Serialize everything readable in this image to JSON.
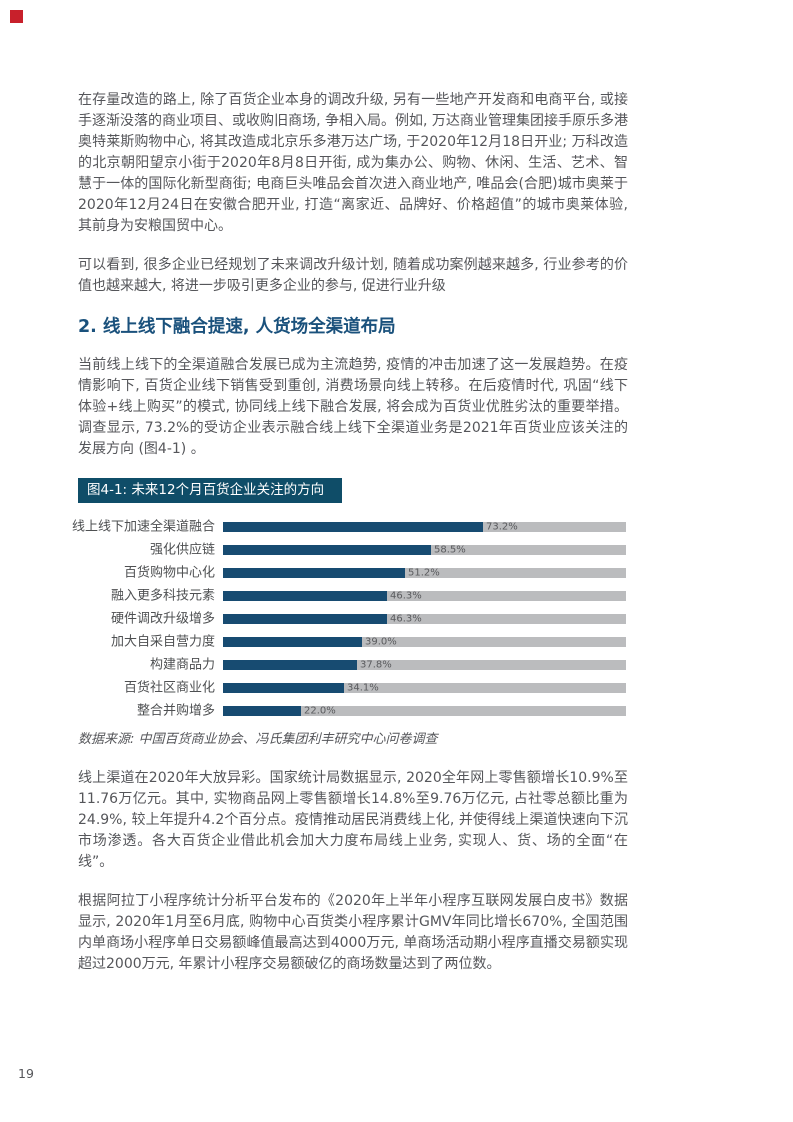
{
  "page": {
    "number": "19"
  },
  "colors": {
    "accent_red": "#c8202b",
    "heading_blue": "#1a517c",
    "figure_header_bg": "#0f4d68",
    "bar_fill": "#174b71",
    "bar_track": "#bbbcbe",
    "body_text": "#55565a"
  },
  "content": {
    "paragraph1": "在存量改造的路上, 除了百货企业本身的调改升级, 另有一些地产开发商和电商平台, 或接手逐渐没落的商业项目、或收购旧商场, 争相入局。例如, 万达商业管理集团接手原乐多港奥特莱斯购物中心, 将其改造成北京乐多港万达广场, 于2020年12月18日开业; 万科改造的北京朝阳望京小街于2020年8月8日开街, 成为集办公、购物、休闲、生活、艺术、智慧于一体的国际化新型商街; 电商巨头唯品会首次进入商业地产, 唯品会(合肥)城市奥莱于2020年12月24日在安徽合肥开业, 打造“离家近、品牌好、价格超值”的城市奥莱体验, 其前身为安粮国贸中心。",
    "paragraph2": "可以看到, 很多企业已经规划了未来调改升级计划, 随着成功案例越来越多, 行业参考的价值也越来越大, 将进一步吸引更多企业的参与, 促进行业升级",
    "section_heading": "2. 线上线下融合提速, 人货场全渠道布局",
    "paragraph3": "当前线上线下的全渠道融合发展已成为主流趋势, 疫情的冲击加速了这一发展趋势。在疫情影响下, 百货企业线下销售受到重创, 消费场景向线上转移。在后疫情时代, 巩固“线下体验+线上购买”的模式, 协同线上线下融合发展, 将会成为百货业优胜劣汰的重要举措。调查显示, 73.2%的受访企业表示融合线上线下全渠道业务是2021年百货业应该关注的发展方向 (图4-1) 。",
    "source_note": "数据来源: 中国百货商业协会、冯氏集团利丰研究中心问卷调查",
    "paragraph4": "线上渠道在2020年大放异彩。国家统计局数据显示, 2020全年网上零售额增长10.9%至11.76万亿元。其中, 实物商品网上零售额增长14.8%至9.76万亿元, 占社零总额比重为24.9%, 较上年提升4.2个百分点。疫情推动居民消费线上化, 并使得线上渠道快速向下沉市场渗透。各大百货企业借此机会加大力度布局线上业务, 实现人、货、场的全面“在线”。",
    "paragraph5": "根据阿拉丁小程序统计分析平台发布的《2020年上半年小程序互联网发展白皮书》数据显示, 2020年1月至6月底, 购物中心百货类小程序累计GMV年同比增长670%, 全国范围内单商场小程序单日交易额峰值最高达到4000万元, 单商场活动期小程序直播交易额实现超过2000万元, 年累计小程序交易额破亿的商场数量达到了两位数。"
  },
  "chart_data": {
    "type": "bar",
    "orientation": "horizontal",
    "title": "图4-1: 未来12个月百货企业关注的方向",
    "categories": [
      "线上线下加速全渠道融合",
      "强化供应链",
      "百货购物中心化",
      "融入更多科技元素",
      "硬件调改升级增多",
      "加大自采自营力度",
      "构建商品力",
      "百货社区商业化",
      "整合并购增多"
    ],
    "values": [
      73.2,
      58.5,
      51.2,
      46.3,
      46.3,
      39.0,
      37.8,
      34.1,
      22.0
    ],
    "value_labels": [
      "73.2%",
      "58.5%",
      "51.2%",
      "46.3%",
      "46.3%",
      "39.0%",
      "37.8%",
      "34.1%",
      "22.0%"
    ],
    "unit": "%",
    "xlim": [
      0,
      113.5
    ],
    "grid": false,
    "legend": false,
    "source": "数据来源: 中国百货商业协会、冯氏集团利丰研究中心问卷调查"
  }
}
